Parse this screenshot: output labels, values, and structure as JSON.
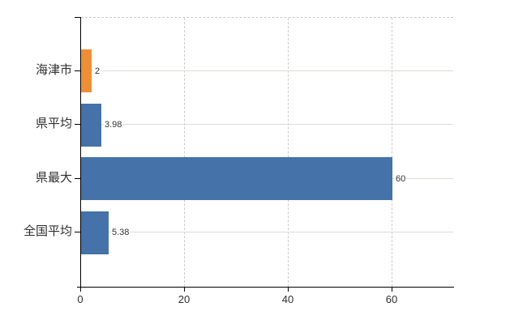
{
  "chart_data": {
    "type": "bar",
    "orientation": "horizontal",
    "title": "",
    "categories": [
      "海津市",
      "県平均",
      "県最大",
      "全国平均"
    ],
    "values": [
      2,
      3.98,
      60,
      5.38
    ],
    "value_labels": [
      "2",
      "3.98",
      "60",
      "5.38"
    ],
    "bar_colors": [
      "#ef8e35",
      "#4472a9",
      "#4472a9",
      "#4472a9"
    ],
    "x_ticks": [
      0,
      20,
      40,
      60
    ],
    "x_tick_labels": [
      "0",
      "20",
      "40",
      "60"
    ],
    "xlim": [
      0,
      71.9
    ],
    "xlabel": "",
    "ylabel": "",
    "grid": true,
    "legend": false,
    "grid_style": {
      "horizontal": "solid light gray line at each category center",
      "vertical": "dashed light gray line at each x tick",
      "top_boundary": "dashed light gray line"
    }
  },
  "colors": {
    "background": "#ffffff",
    "axis": "#000000",
    "bar_highlight": "#ef8e35",
    "bar_default": "#4472a9",
    "grid_horizontal": "#d8ded6",
    "grid_vertical": "#cccccc",
    "text": "#2f2f2f"
  }
}
